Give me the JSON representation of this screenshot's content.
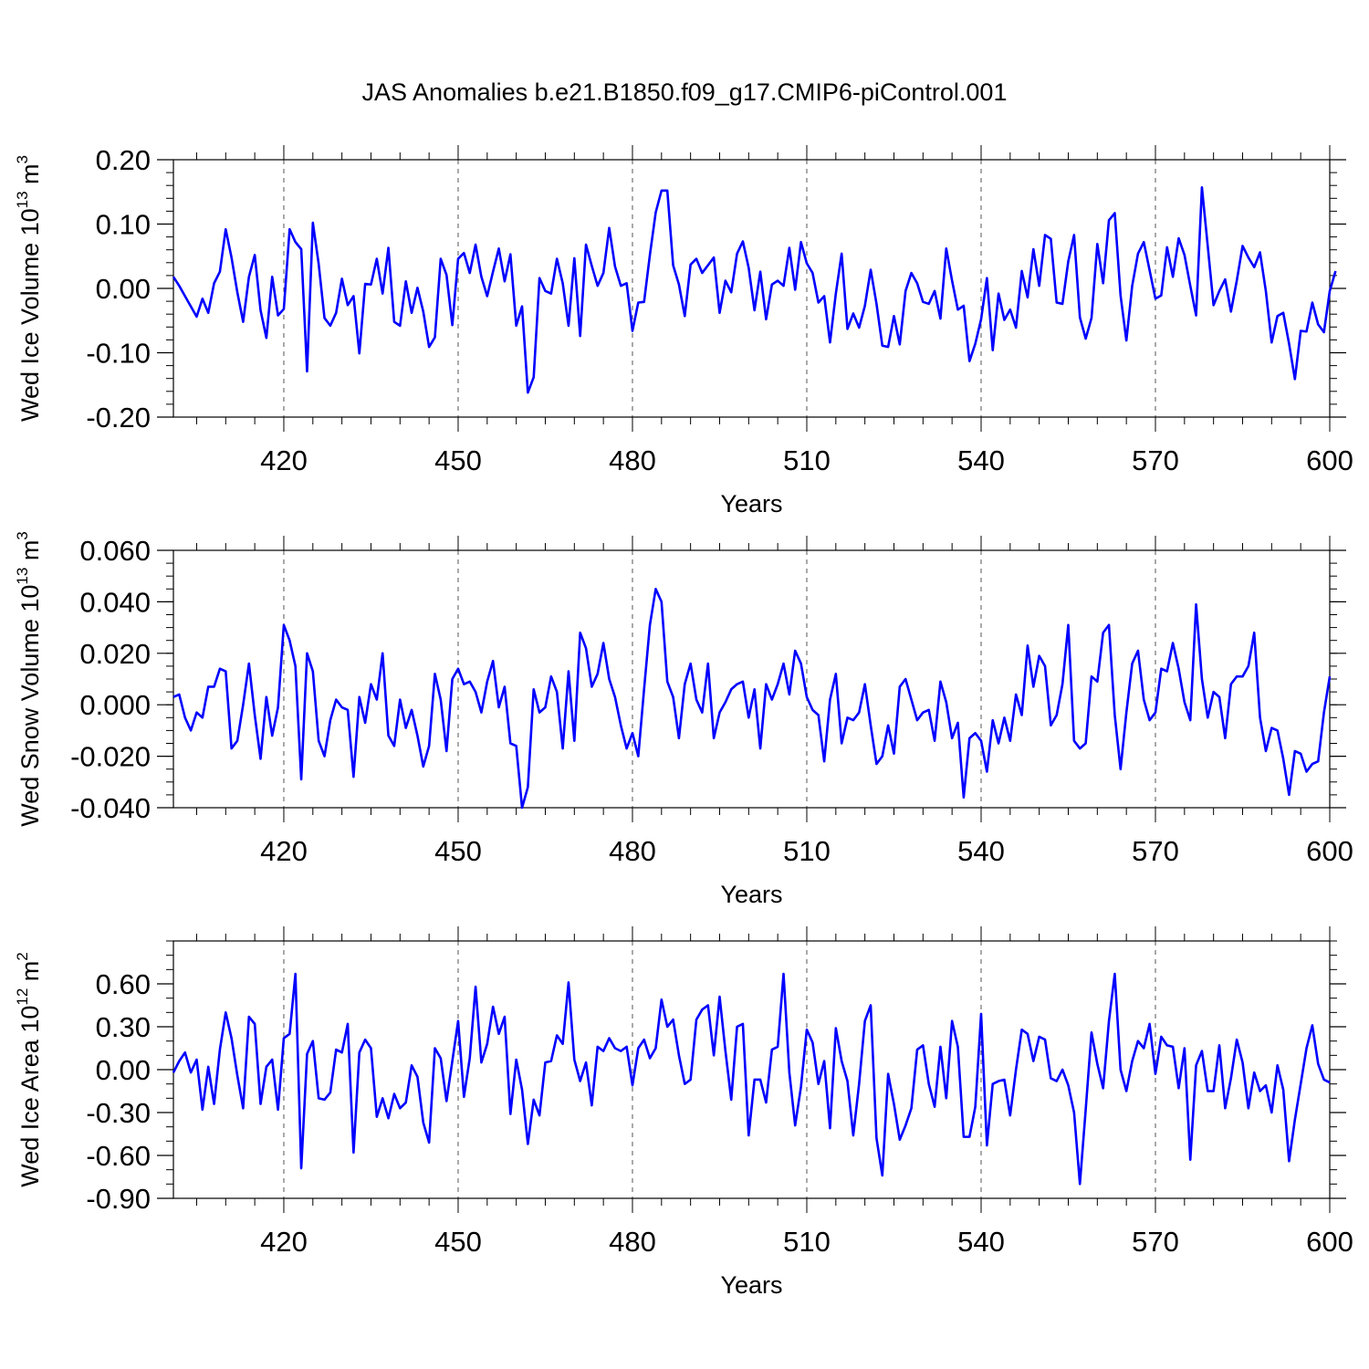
{
  "title": "JAS Anomalies b.e21.B1850.f09_g17.CMIP6-piControl.001",
  "line_color": "#0000ff",
  "chart_data": [
    {
      "type": "line",
      "ylabel": {
        "main": "Wed Ice Volume 10",
        "sup1": "13",
        "mid": " m",
        "sup2": "3"
      },
      "xlabel": "Years",
      "xlim": [
        401,
        600
      ],
      "ylim": [
        -0.2,
        0.2
      ],
      "x_ticks": [
        420,
        450,
        480,
        510,
        540,
        570,
        600
      ],
      "y_ticks": [
        "-0.20",
        "-0.10",
        "0.00",
        "0.10",
        "0.20"
      ],
      "y_minor_step": 0.02,
      "gridlines_x": [
        420,
        450,
        480,
        510,
        540,
        570
      ],
      "series": [
        {
          "x_start": 401,
          "values": [
            0.018,
            0.004,
            -0.012,
            -0.028,
            -0.044,
            -0.016,
            -0.038,
            0.008,
            0.026,
            0.092,
            0.048,
            -0.006,
            -0.052,
            0.018,
            0.052,
            -0.034,
            -0.077,
            0.018,
            -0.042,
            -0.032,
            0.092,
            0.072,
            0.061,
            -0.129,
            0.102,
            0.038,
            -0.046,
            -0.058,
            -0.038,
            0.015,
            -0.026,
            -0.012,
            -0.101,
            0.007,
            0.006,
            0.046,
            -0.008,
            0.063,
            -0.052,
            -0.058,
            0.011,
            -0.038,
            0.001,
            -0.036,
            -0.091,
            -0.076,
            0.046,
            0.021,
            -0.057,
            0.046,
            0.055,
            0.024,
            0.068,
            0.018,
            -0.012,
            0.026,
            0.062,
            0.011,
            0.053,
            -0.058,
            -0.028,
            -0.162,
            -0.138,
            0.016,
            -0.004,
            -0.008,
            0.046,
            0.008,
            -0.058,
            0.047,
            -0.074,
            0.068,
            0.035,
            0.004,
            0.024,
            0.094,
            0.034,
            0.004,
            0.008,
            -0.066,
            -0.022,
            -0.021,
            0.052,
            0.118,
            0.152,
            0.152,
            0.036,
            0.006,
            -0.043,
            0.037,
            0.046,
            0.024,
            0.036,
            0.048,
            -0.038,
            0.012,
            -0.006,
            0.054,
            0.073,
            0.032,
            -0.034,
            0.026,
            -0.048,
            0.006,
            0.012,
            0.004,
            0.063,
            -0.002,
            0.072,
            0.039,
            0.024,
            -0.022,
            -0.012,
            -0.084,
            -0.008,
            0.054,
            -0.063,
            -0.039,
            -0.061,
            -0.027,
            0.029,
            -0.024,
            -0.089,
            -0.091,
            -0.043,
            -0.087,
            -0.004,
            0.024,
            0.008,
            -0.021,
            -0.024,
            -0.004,
            -0.047,
            0.062,
            0.012,
            -0.033,
            -0.027,
            -0.113,
            -0.086,
            -0.048,
            0.016,
            -0.096,
            -0.008,
            -0.049,
            -0.033,
            -0.061,
            0.027,
            -0.014,
            0.061,
            0.004,
            0.083,
            0.077,
            -0.022,
            -0.024,
            0.042,
            0.083,
            -0.045,
            -0.078,
            -0.046,
            0.069,
            0.008,
            0.106,
            0.117,
            -0.011,
            -0.081,
            0.004,
            0.054,
            0.072,
            0.028,
            -0.016,
            -0.011,
            0.064,
            0.018,
            0.078,
            0.052,
            0.004,
            -0.042,
            0.157,
            0.066,
            -0.026,
            -0.004,
            0.014,
            -0.036,
            0.012,
            0.066,
            0.048,
            0.033,
            0.056,
            -0.004,
            -0.084,
            -0.043,
            -0.038,
            -0.086,
            -0.141,
            -0.066,
            -0.067,
            -0.022,
            -0.056,
            -0.068,
            -0.004,
            0.027
          ]
        }
      ]
    },
    {
      "type": "line",
      "ylabel": {
        "main": "Wed Snow Volume 10",
        "sup1": "13",
        "mid": " m",
        "sup2": "3"
      },
      "xlabel": "Years",
      "xlim": [
        401,
        600
      ],
      "ylim": [
        -0.04,
        0.06
      ],
      "x_ticks": [
        420,
        450,
        480,
        510,
        540,
        570,
        600
      ],
      "y_ticks": [
        "-0.040",
        "-0.020",
        "0.000",
        "0.020",
        "0.040",
        "0.060"
      ],
      "y_minor_step": 0.005,
      "gridlines_x": [
        420,
        450,
        480,
        510,
        540,
        570
      ],
      "series": [
        {
          "x_start": 401,
          "values": [
            0.003,
            0.004,
            -0.005,
            -0.01,
            -0.003,
            -0.005,
            0.007,
            0.007,
            0.014,
            0.013,
            -0.017,
            -0.014,
            0.0,
            0.016,
            -0.004,
            -0.021,
            0.003,
            -0.012,
            -0.001,
            0.031,
            0.025,
            0.015,
            -0.029,
            0.02,
            0.013,
            -0.014,
            -0.02,
            -0.006,
            0.002,
            -0.001,
            -0.002,
            -0.028,
            0.003,
            -0.007,
            0.008,
            0.002,
            0.02,
            -0.012,
            -0.016,
            0.002,
            -0.009,
            -0.002,
            -0.012,
            -0.024,
            -0.016,
            0.012,
            0.002,
            -0.018,
            0.01,
            0.014,
            0.008,
            0.009,
            0.005,
            -0.003,
            0.009,
            0.017,
            -0.001,
            0.007,
            -0.015,
            -0.016,
            -0.04,
            -0.032,
            0.006,
            -0.003,
            -0.001,
            0.011,
            0.005,
            -0.017,
            0.013,
            -0.014,
            0.028,
            0.022,
            0.007,
            0.012,
            0.024,
            0.01,
            0.003,
            -0.008,
            -0.017,
            -0.011,
            -0.02,
            0.006,
            0.031,
            0.045,
            0.04,
            0.009,
            0.003,
            -0.013,
            0.008,
            0.016,
            0.002,
            -0.003,
            0.016,
            -0.013,
            -0.003,
            0.001,
            0.006,
            0.008,
            0.009,
            -0.005,
            0.006,
            -0.017,
            0.008,
            0.002,
            0.008,
            0.016,
            0.004,
            0.021,
            0.016,
            0.003,
            -0.002,
            -0.004,
            -0.022,
            0.002,
            0.012,
            -0.015,
            -0.005,
            -0.006,
            -0.003,
            0.008,
            -0.008,
            -0.023,
            -0.02,
            -0.008,
            -0.019,
            0.007,
            0.01,
            0.002,
            -0.006,
            -0.003,
            -0.002,
            -0.014,
            0.009,
            0.001,
            -0.013,
            -0.007,
            -0.036,
            -0.013,
            -0.011,
            -0.014,
            -0.026,
            -0.006,
            -0.015,
            -0.005,
            -0.014,
            0.004,
            -0.004,
            0.023,
            0.007,
            0.019,
            0.015,
            -0.008,
            -0.004,
            0.008,
            0.031,
            -0.014,
            -0.017,
            -0.015,
            0.011,
            0.009,
            0.028,
            0.031,
            -0.004,
            -0.025,
            -0.003,
            0.016,
            0.021,
            0.002,
            -0.006,
            -0.003,
            0.014,
            0.013,
            0.024,
            0.014,
            0.001,
            -0.006,
            0.039,
            0.01,
            -0.005,
            0.005,
            0.003,
            -0.013,
            0.008,
            0.011,
            0.011,
            0.015,
            0.028,
            -0.005,
            -0.018,
            -0.009,
            -0.01,
            -0.021,
            -0.035,
            -0.018,
            -0.019,
            -0.026,
            -0.023,
            -0.022,
            -0.003,
            0.011
          ]
        }
      ]
    },
    {
      "type": "line",
      "ylabel": {
        "main": "Wed Ice Area 10",
        "sup1": "12",
        "mid": " m",
        "sup2": "2"
      },
      "xlabel": "Years",
      "xlim": [
        401,
        600
      ],
      "ylim": [
        -0.9,
        0.9
      ],
      "x_ticks": [
        420,
        450,
        480,
        510,
        540,
        570,
        600
      ],
      "y_ticks": [
        "-0.90",
        "-0.60",
        "-0.30",
        "0.00",
        "0.30",
        "0.60"
      ],
      "y_minor_step": 0.1,
      "gridlines_x": [
        420,
        450,
        480,
        510,
        540,
        570
      ],
      "series": [
        {
          "x_start": 401,
          "values": [
            -0.02,
            0.06,
            0.12,
            -0.02,
            0.07,
            -0.28,
            0.02,
            -0.24,
            0.14,
            0.4,
            0.22,
            -0.04,
            -0.27,
            0.37,
            0.32,
            -0.24,
            0.02,
            0.07,
            -0.28,
            0.22,
            0.25,
            0.67,
            -0.69,
            0.11,
            0.2,
            -0.2,
            -0.21,
            -0.16,
            0.14,
            0.12,
            0.32,
            -0.58,
            0.12,
            0.21,
            0.15,
            -0.33,
            -0.2,
            -0.34,
            -0.17,
            -0.27,
            -0.23,
            0.03,
            -0.05,
            -0.37,
            -0.51,
            0.15,
            0.08,
            -0.22,
            0.06,
            0.34,
            -0.19,
            0.08,
            0.58,
            0.05,
            0.18,
            0.44,
            0.25,
            0.37,
            -0.31,
            0.07,
            -0.14,
            -0.52,
            -0.21,
            -0.32,
            0.05,
            0.06,
            0.24,
            0.18,
            0.61,
            0.07,
            -0.08,
            0.05,
            -0.25,
            0.16,
            0.13,
            0.22,
            0.15,
            0.13,
            0.16,
            -0.11,
            0.15,
            0.21,
            0.08,
            0.15,
            0.49,
            0.3,
            0.35,
            0.1,
            -0.1,
            -0.07,
            0.35,
            0.42,
            0.45,
            0.1,
            0.51,
            0.13,
            -0.21,
            0.3,
            0.32,
            -0.46,
            -0.07,
            -0.07,
            -0.23,
            0.14,
            0.16,
            0.67,
            -0.02,
            -0.39,
            -0.12,
            0.28,
            0.19,
            -0.1,
            0.06,
            -0.41,
            0.29,
            0.06,
            -0.08,
            -0.46,
            -0.1,
            0.34,
            0.45,
            -0.48,
            -0.74,
            -0.03,
            -0.24,
            -0.49,
            -0.39,
            -0.27,
            0.14,
            0.17,
            -0.1,
            -0.26,
            0.16,
            -0.2,
            0.34,
            0.16,
            -0.47,
            -0.47,
            -0.26,
            0.39,
            -0.53,
            -0.1,
            -0.08,
            -0.07,
            -0.32,
            0.0,
            0.28,
            0.25,
            0.06,
            0.23,
            0.21,
            -0.06,
            -0.08,
            0.0,
            -0.11,
            -0.3,
            -0.8,
            -0.28,
            0.26,
            0.04,
            -0.13,
            0.34,
            0.67,
            0.0,
            -0.15,
            0.06,
            0.2,
            0.15,
            0.32,
            -0.03,
            0.23,
            0.17,
            0.16,
            -0.13,
            0.15,
            -0.63,
            0.03,
            0.13,
            -0.15,
            -0.15,
            0.17,
            -0.27,
            -0.06,
            0.21,
            0.05,
            -0.27,
            -0.02,
            -0.15,
            -0.11,
            -0.3,
            0.03,
            -0.14,
            -0.64,
            -0.35,
            -0.1,
            0.15,
            0.31,
            0.04,
            -0.07,
            -0.09
          ]
        }
      ]
    }
  ]
}
